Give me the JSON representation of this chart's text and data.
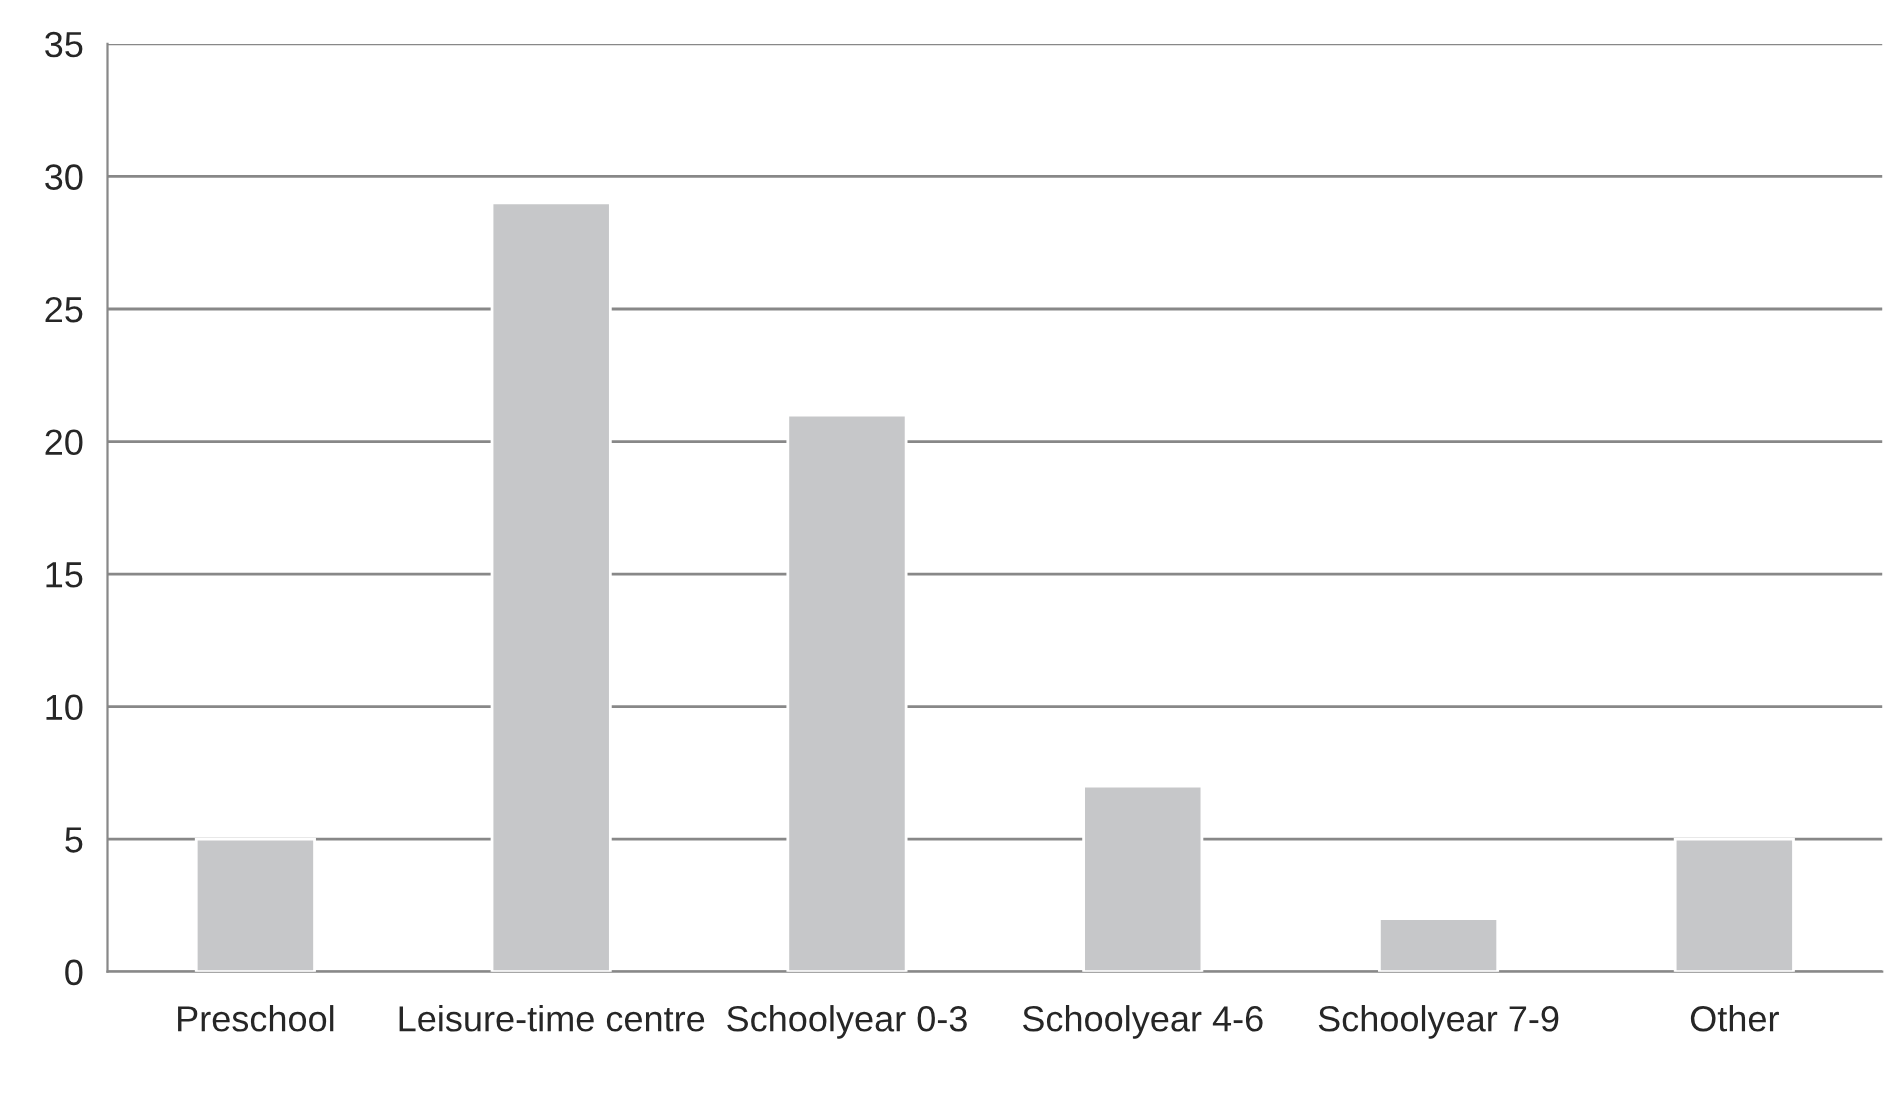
{
  "chart_data": {
    "type": "bar",
    "categories": [
      "Preschool",
      "Leisure-time centre",
      "Schoolyear 0-3",
      "Schoolyear 4-6",
      "Schoolyear 7-9",
      "Other"
    ],
    "values": [
      5,
      29,
      21,
      7,
      2,
      5
    ],
    "color": "#c6c7c9",
    "ylim": [
      0,
      35
    ],
    "yticks": [
      0,
      5,
      10,
      15,
      20,
      25,
      30,
      35
    ],
    "grid": "y"
  }
}
